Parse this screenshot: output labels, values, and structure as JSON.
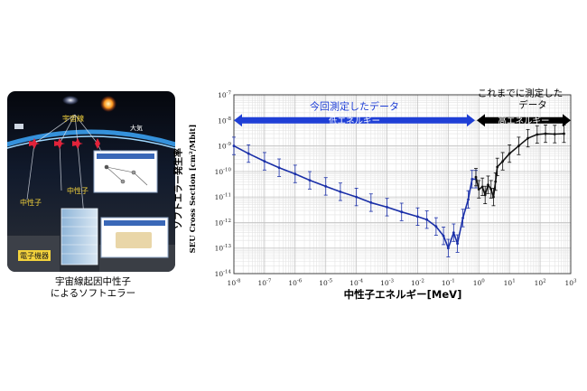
{
  "illustration": {
    "labels": {
      "cosmic_ray": "宇宙線",
      "atmosphere": "大気",
      "neutron_left": "中性子",
      "neutron_center": "中性子",
      "device": "電子機器"
    },
    "caption_line1": "宇宙線起因中性子",
    "caption_line2": "によるソフトエラー"
  },
  "chart_data": {
    "type": "line",
    "title": "",
    "xlabel": "中性子エネルギー[MeV]",
    "ylabel_line1": "ソフトエラー発生率",
    "ylabel_line2": "SEU Cross Section [cm²/Mbit]",
    "x_scale": "log",
    "y_scale": "log",
    "xlim": [
      1e-08,
      1000
    ],
    "ylim": [
      1e-14,
      1e-07
    ],
    "x_ticks": [
      "10-8",
      "10-7",
      "10-6",
      "10-5",
      "10-4",
      "10-3",
      "10-2",
      "10-1",
      "100",
      "101",
      "102",
      "103"
    ],
    "y_ticks": [
      "10-14",
      "10-13",
      "10-12",
      "10-11",
      "10-10",
      "10-9",
      "10-8",
      "10-7"
    ],
    "grid": true,
    "series": [
      {
        "key": "low",
        "color": "#1a2fa8",
        "points": [
          [
            1e-08,
            1e-09
          ],
          [
            3e-08,
            5e-10
          ],
          [
            1e-07,
            2.5e-10
          ],
          [
            3e-07,
            1.4e-10
          ],
          [
            1e-06,
            8e-11
          ],
          [
            3e-06,
            4.5e-11
          ],
          [
            1e-05,
            2.6e-11
          ],
          [
            3e-05,
            1.6e-11
          ],
          [
            0.0001,
            1e-11
          ],
          [
            0.0003,
            6e-12
          ],
          [
            0.001,
            4e-12
          ],
          [
            0.003,
            2.6e-12
          ],
          [
            0.01,
            1.7e-12
          ],
          [
            0.02,
            1.3e-12
          ],
          [
            0.04,
            7e-13
          ],
          [
            0.07,
            3e-13
          ],
          [
            0.1,
            1e-13
          ],
          [
            0.15,
            4e-13
          ],
          [
            0.2,
            1.5e-13
          ],
          [
            0.3,
            1.5e-12
          ],
          [
            0.45,
            8e-12
          ],
          [
            0.6,
            5e-11
          ],
          [
            0.8,
            5e-11
          ]
        ]
      },
      {
        "key": "high",
        "color": "#111111",
        "points": [
          [
            0.8,
            6e-11
          ],
          [
            1,
            2e-11
          ],
          [
            1.3,
            2.5e-11
          ],
          [
            1.6,
            1.2e-11
          ],
          [
            2,
            3e-11
          ],
          [
            2.5,
            2e-11
          ],
          [
            3,
            1e-11
          ],
          [
            3.5,
            4e-11
          ],
          [
            4,
            1.5e-10
          ],
          [
            6,
            2.5e-10
          ],
          [
            10,
            5e-10
          ],
          [
            20,
            1e-09
          ],
          [
            40,
            2e-09
          ],
          [
            80,
            2.8e-09
          ],
          [
            150,
            3e-09
          ],
          [
            300,
            2.9e-09
          ],
          [
            600,
            3e-09
          ]
        ]
      }
    ],
    "annotations": {
      "low_range_title": "今回測定したデータ",
      "low_range_label": "低エネルギー",
      "low_range_x": [
        1e-08,
        0.8
      ],
      "high_range_title_line1": "これまでに測定した",
      "high_range_title_line2": "データ",
      "high_range_label": "高エネルギー",
      "high_range_x": [
        0.8,
        1000
      ],
      "arrow_y": 1e-08,
      "low_color": "#1f3fd6",
      "high_color": "#000000"
    }
  },
  "colors": {
    "space_bg": "#0d1220",
    "atmosphere": "#2f8fd8",
    "neutron_marks": "#e2233a",
    "label_yellow": "#f3d23c"
  }
}
